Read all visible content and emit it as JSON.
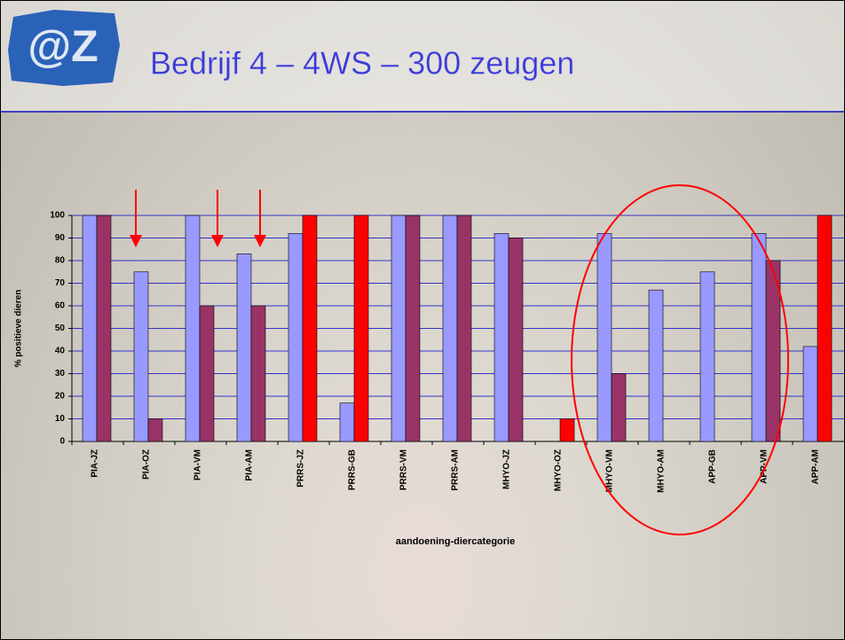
{
  "title": "Bedrijf 4 – 4WS – 300 zeugen",
  "chart_data": {
    "type": "bar",
    "y_label": "% positieve dieren",
    "x_label": "aandoening-diercategorie",
    "categories": [
      "PIA-JZ",
      "PIA-OZ",
      "PIA-VM",
      "PIA-AM",
      "PRRS-JZ",
      "PRRS-GB",
      "PRRS-VM",
      "PRRS-AM",
      "MHYO-JZ",
      "MHYO-OZ",
      "MHYO-VM",
      "MHYO-AM",
      "APP-GB",
      "APP-VM",
      "APP-AM"
    ],
    "series": [
      {
        "color": "#9999ff",
        "values": [
          100,
          75,
          100,
          83,
          92,
          17,
          100,
          100,
          92,
          null,
          92,
          67,
          75,
          92,
          42
        ]
      },
      {
        "color": "#993366",
        "colors": [
          "#993366",
          "#993366",
          "#993366",
          "#993366",
          "#ff0000",
          "#ff0000",
          "#993366",
          "#993366",
          "#993366",
          "#ff0000",
          "#993366",
          "#993366",
          "#993366",
          "#993366",
          "#ff0000"
        ],
        "values": [
          100,
          10,
          60,
          60,
          100,
          100,
          100,
          100,
          90,
          10,
          30,
          null,
          null,
          80,
          100
        ]
      }
    ],
    "ylim": [
      0,
      100
    ],
    "yticks": [
      0,
      10,
      20,
      30,
      40,
      50,
      60,
      70,
      80,
      90,
      100
    ],
    "grid": true,
    "grid_color": "#3333cc"
  }
}
